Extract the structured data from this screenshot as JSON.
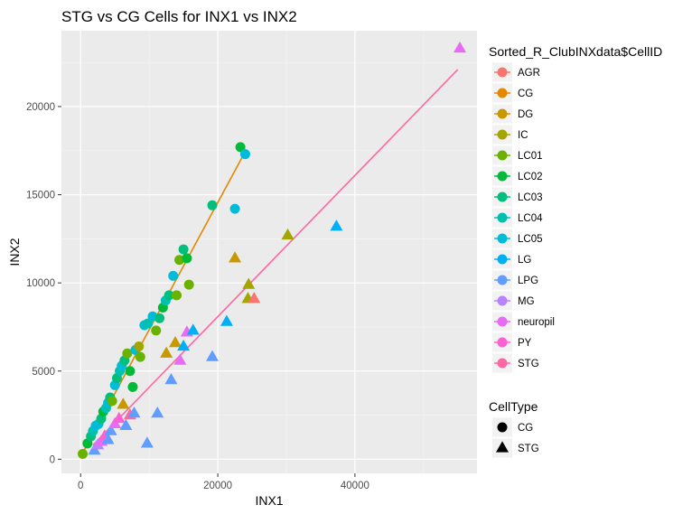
{
  "chart_data": {
    "type": "scatter",
    "title": "STG vs CG Cells for INX1 vs INX2",
    "xlabel": "INX1",
    "ylabel": "INX2",
    "xlim": [
      -2800,
      57800
    ],
    "ylim": [
      -800,
      24300
    ],
    "xticks": [
      0,
      20000,
      40000
    ],
    "yticks": [
      0,
      5000,
      10000,
      15000,
      20000
    ],
    "x_tick_labels": [
      "0",
      "20000",
      "40000"
    ],
    "y_tick_labels": [
      "0",
      "5000",
      "10000",
      "15000",
      "20000"
    ],
    "grid": true,
    "background": "#ebebeb",
    "legend_placement": "right",
    "color_legend": {
      "title": "Sorted_R_ClubINXdata$CellID",
      "entries": [
        {
          "label": "AGR",
          "color": "#F8766D"
        },
        {
          "label": "CG",
          "color": "#E58700"
        },
        {
          "label": "DG",
          "color": "#C99800"
        },
        {
          "label": "IC",
          "color": "#A3A500"
        },
        {
          "label": "LC01",
          "color": "#6BB100"
        },
        {
          "label": "LC02",
          "color": "#00BA38"
        },
        {
          "label": "LC03",
          "color": "#00BF7D"
        },
        {
          "label": "LC04",
          "color": "#00C0AF"
        },
        {
          "label": "LC05",
          "color": "#00BCD8"
        },
        {
          "label": "LG",
          "color": "#00B0F6"
        },
        {
          "label": "LPG",
          "color": "#619CFF"
        },
        {
          "label": "MG",
          "color": "#B983FF"
        },
        {
          "label": "neuropil",
          "color": "#E76BF3"
        },
        {
          "label": "PY",
          "color": "#FD61D1"
        },
        {
          "label": "STG",
          "color": "#FF67A4"
        }
      ]
    },
    "shape_legend": {
      "title": "CellType",
      "entries": [
        {
          "label": "CG",
          "shape": "circle"
        },
        {
          "label": "STG",
          "shape": "triangle"
        }
      ]
    },
    "fit_lines": [
      {
        "group": "CG",
        "color": "#E58700",
        "x": [
          300,
          23800
        ],
        "y": [
          350,
          17300
        ]
      },
      {
        "group": "STG",
        "color": "#FF67A4",
        "x": [
          1800,
          55000
        ],
        "y": [
          800,
          22100
        ]
      }
    ],
    "series": [
      {
        "name": "CG",
        "shape": "circle",
        "points": [
          {
            "x": 300,
            "y": 300,
            "color": "#6BB100"
          },
          {
            "x": 1000,
            "y": 900,
            "color": "#00BA38"
          },
          {
            "x": 1500,
            "y": 1300,
            "color": "#00BF7D"
          },
          {
            "x": 1800,
            "y": 1600,
            "color": "#00C0AF"
          },
          {
            "x": 2200,
            "y": 1900,
            "color": "#00BCD8"
          },
          {
            "x": 2600,
            "y": 2000,
            "color": "#00BCD8"
          },
          {
            "x": 3000,
            "y": 2300,
            "color": "#00BF7D"
          },
          {
            "x": 3300,
            "y": 2700,
            "color": "#00BA38"
          },
          {
            "x": 3700,
            "y": 2900,
            "color": "#00C0AF"
          },
          {
            "x": 4000,
            "y": 3200,
            "color": "#00BCD8"
          },
          {
            "x": 4300,
            "y": 3500,
            "color": "#00BF7D"
          },
          {
            "x": 4600,
            "y": 3300,
            "color": "#6BB100"
          },
          {
            "x": 5000,
            "y": 4200,
            "color": "#00BCD8"
          },
          {
            "x": 5300,
            "y": 4600,
            "color": "#00BF7D"
          },
          {
            "x": 5700,
            "y": 5000,
            "color": "#00C0AF"
          },
          {
            "x": 6000,
            "y": 5300,
            "color": "#00BCD8"
          },
          {
            "x": 6400,
            "y": 5600,
            "color": "#00BF7D"
          },
          {
            "x": 6800,
            "y": 6000,
            "color": "#6BB100"
          },
          {
            "x": 7200,
            "y": 5000,
            "color": "#00BA38"
          },
          {
            "x": 7600,
            "y": 4100,
            "color": "#00BA38"
          },
          {
            "x": 8000,
            "y": 6200,
            "color": "#00BCD8"
          },
          {
            "x": 8500,
            "y": 6400,
            "color": "#A3A500"
          },
          {
            "x": 8700,
            "y": 5800,
            "color": "#6BB100"
          },
          {
            "x": 9300,
            "y": 7600,
            "color": "#00BCD8"
          },
          {
            "x": 9800,
            "y": 7700,
            "color": "#00C0AF"
          },
          {
            "x": 10500,
            "y": 8100,
            "color": "#00BCD8"
          },
          {
            "x": 11000,
            "y": 7300,
            "color": "#6BB100"
          },
          {
            "x": 11500,
            "y": 8000,
            "color": "#00BF7D"
          },
          {
            "x": 12000,
            "y": 8600,
            "color": "#00BA38"
          },
          {
            "x": 12400,
            "y": 9000,
            "color": "#00C0AF"
          },
          {
            "x": 12900,
            "y": 9300,
            "color": "#00BF7D"
          },
          {
            "x": 13500,
            "y": 10400,
            "color": "#00BCD8"
          },
          {
            "x": 14000,
            "y": 9300,
            "color": "#6BB100"
          },
          {
            "x": 14400,
            "y": 11300,
            "color": "#6BB100"
          },
          {
            "x": 15000,
            "y": 11900,
            "color": "#00BF7D"
          },
          {
            "x": 15500,
            "y": 11400,
            "color": "#00BA38"
          },
          {
            "x": 15800,
            "y": 9900,
            "color": "#6BB100"
          },
          {
            "x": 19200,
            "y": 14400,
            "color": "#00BF7D"
          },
          {
            "x": 22500,
            "y": 14200,
            "color": "#00BCD8"
          },
          {
            "x": 23300,
            "y": 17700,
            "color": "#00BA38"
          },
          {
            "x": 24000,
            "y": 17300,
            "color": "#00BCD8"
          }
        ]
      },
      {
        "name": "STG",
        "shape": "triangle",
        "points": [
          {
            "x": 2000,
            "y": 500,
            "color": "#619CFF"
          },
          {
            "x": 2500,
            "y": 800,
            "color": "#B983FF"
          },
          {
            "x": 3000,
            "y": 1000,
            "color": "#E76BF3"
          },
          {
            "x": 3500,
            "y": 1300,
            "color": "#FD61D1"
          },
          {
            "x": 4000,
            "y": 1100,
            "color": "#619CFF"
          },
          {
            "x": 4400,
            "y": 1600,
            "color": "#619CFF"
          },
          {
            "x": 5000,
            "y": 2000,
            "color": "#E76BF3"
          },
          {
            "x": 5600,
            "y": 2300,
            "color": "#FD61D1"
          },
          {
            "x": 6200,
            "y": 3100,
            "color": "#C99800"
          },
          {
            "x": 6600,
            "y": 1900,
            "color": "#619CFF"
          },
          {
            "x": 7200,
            "y": 2500,
            "color": "#FF67A4"
          },
          {
            "x": 7800,
            "y": 2600,
            "color": "#619CFF"
          },
          {
            "x": 9700,
            "y": 900,
            "color": "#619CFF"
          },
          {
            "x": 11200,
            "y": 2600,
            "color": "#619CFF"
          },
          {
            "x": 12500,
            "y": 6000,
            "color": "#C99800"
          },
          {
            "x": 13200,
            "y": 4500,
            "color": "#619CFF"
          },
          {
            "x": 13800,
            "y": 6600,
            "color": "#C99800"
          },
          {
            "x": 14500,
            "y": 5600,
            "color": "#E76BF3"
          },
          {
            "x": 15000,
            "y": 6400,
            "color": "#00B0F6"
          },
          {
            "x": 15500,
            "y": 7200,
            "color": "#E76BF3"
          },
          {
            "x": 16400,
            "y": 7300,
            "color": "#00B0F6"
          },
          {
            "x": 19200,
            "y": 5800,
            "color": "#619CFF"
          },
          {
            "x": 21300,
            "y": 7800,
            "color": "#00B0F6"
          },
          {
            "x": 22500,
            "y": 11400,
            "color": "#C99800"
          },
          {
            "x": 24500,
            "y": 9900,
            "color": "#A3A500"
          },
          {
            "x": 24400,
            "y": 9100,
            "color": "#A3A500"
          },
          {
            "x": 25300,
            "y": 9100,
            "color": "#F8766D"
          },
          {
            "x": 30200,
            "y": 12700,
            "color": "#A3A500"
          },
          {
            "x": 37300,
            "y": 13200,
            "color": "#00B0F6"
          },
          {
            "x": 55300,
            "y": 23300,
            "color": "#E76BF3"
          }
        ]
      }
    ]
  }
}
